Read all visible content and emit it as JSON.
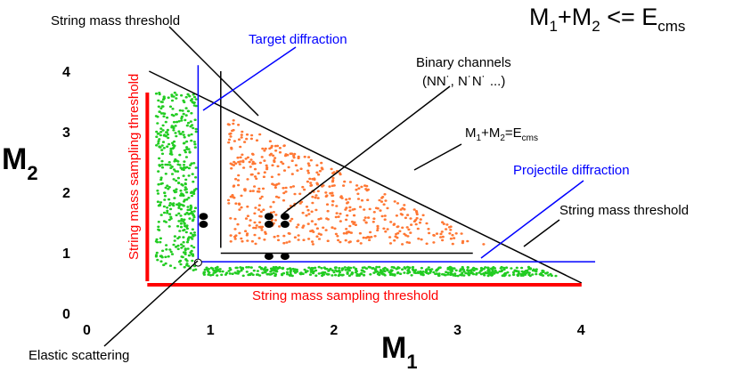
{
  "title_formula": {
    "main": "M",
    "sub1": "1",
    "plus": "+M",
    "sub2": "2",
    "rel": " <= E",
    "sub3": "cms"
  },
  "axes": {
    "x_label": {
      "main": "M",
      "sub": "1"
    },
    "y_label": {
      "main": "M",
      "sub": "2"
    },
    "x_ticks": [
      "0",
      "1",
      "2",
      "3",
      "4"
    ],
    "y_ticks": [
      "0",
      "1",
      "2",
      "3",
      "4"
    ],
    "range": [
      0,
      4.5
    ]
  },
  "labels": {
    "string_threshold_top": "String mass threshold",
    "target_diffraction": "Target diffraction",
    "binary_channels_line1": "Binary channels",
    "binary_channels_line2": "(NN˙, N˙N˙ ...)",
    "boundary": {
      "a": "M",
      "s1": "1",
      "b": "+M",
      "s2": "2",
      "c": "=E",
      "s3": "cms"
    },
    "projectile_diffraction": "Projectile diffraction",
    "string_threshold_right": "String mass threshold",
    "sampling_vertical": "String mass sampling threshold",
    "sampling_horizontal": "String mass sampling threshold",
    "elastic_scattering": "Elastic scattering"
  },
  "colors": {
    "sampling": "#ff0000",
    "diffraction": "#0000ff",
    "green_dots": "#22cc22",
    "orange_dots": "#ff7733",
    "boundary": "#000000"
  },
  "diagram": {
    "sampling_threshold": 0.5,
    "string_threshold": 1.08,
    "diffraction_mass": 0.94,
    "e_cms": 4.5,
    "binary_points": [
      [
        0.94,
        1.6
      ],
      [
        0.94,
        1.47
      ],
      [
        1.47,
        1.6
      ],
      [
        1.47,
        1.47
      ],
      [
        1.6,
        1.6
      ],
      [
        1.6,
        1.47
      ],
      [
        1.47,
        0.94
      ],
      [
        1.6,
        0.94
      ]
    ],
    "elastic_point": [
      0.94,
      0.94
    ]
  }
}
